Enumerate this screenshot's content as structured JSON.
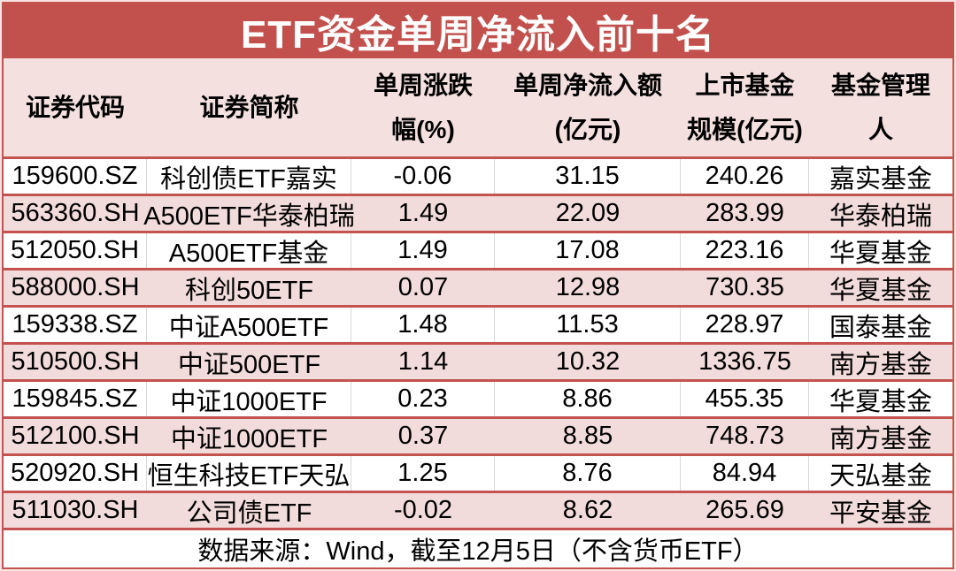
{
  "title": "ETF资金单周净流入前十名",
  "theme": {
    "title_background": "#C2514D",
    "border_red": "#C4524E",
    "row_pink": "#F2DCDB",
    "header_pink": "#F3E0DF",
    "separator_gray": "#D9D9D9",
    "title_text_color": "#FFFFFF",
    "body_text_color": "#000000"
  },
  "table": {
    "headers": [
      {
        "line1": "证券代码",
        "line2": ""
      },
      {
        "line1": "证券简称",
        "line2": ""
      },
      {
        "line1": "单周涨跌",
        "line2": "幅(%)"
      },
      {
        "line1": "单周净流入额",
        "line2": "(亿元)"
      },
      {
        "line1": "上市基金",
        "line2": "规模(亿元)"
      },
      {
        "line1": "基金管理",
        "line2": "人"
      }
    ],
    "rows": [
      {
        "code": "159600.SZ",
        "name": "科创债ETF嘉实",
        "change": "-0.06",
        "inflow": "31.15",
        "size": "240.26",
        "manager": "嘉实基金"
      },
      {
        "code": "563360.SH",
        "name": "A500ETF华泰柏瑞",
        "change": "1.49",
        "inflow": "22.09",
        "size": "283.99",
        "manager": "华泰柏瑞"
      },
      {
        "code": "512050.SH",
        "name": "A500ETF基金",
        "change": "1.49",
        "inflow": "17.08",
        "size": "223.16",
        "manager": "华夏基金"
      },
      {
        "code": "588000.SH",
        "name": "科创50ETF",
        "change": "0.07",
        "inflow": "12.98",
        "size": "730.35",
        "manager": "华夏基金"
      },
      {
        "code": "159338.SZ",
        "name": "中证A500ETF",
        "change": "1.48",
        "inflow": "11.53",
        "size": "228.97",
        "manager": "国泰基金"
      },
      {
        "code": "510500.SH",
        "name": "中证500ETF",
        "change": "1.14",
        "inflow": "10.32",
        "size": "1336.75",
        "manager": "南方基金"
      },
      {
        "code": "159845.SZ",
        "name": "中证1000ETF",
        "change": "0.23",
        "inflow": "8.86",
        "size": "455.35",
        "manager": "华夏基金"
      },
      {
        "code": "512100.SH",
        "name": "中证1000ETF",
        "change": "0.37",
        "inflow": "8.85",
        "size": "748.73",
        "manager": "南方基金"
      },
      {
        "code": "520920.SH",
        "name": "恒生科技ETF天弘",
        "change": "1.25",
        "inflow": "8.76",
        "size": "84.94",
        "manager": "天弘基金"
      },
      {
        "code": "511030.SH",
        "name": "公司债ETF",
        "change": "-0.02",
        "inflow": "8.62",
        "size": "265.69",
        "manager": "平安基金"
      }
    ]
  },
  "footer": {
    "source_note": "数据来源：Wind，截至12月5日（不含货币ETF）"
  },
  "chart_data": {
    "type": "table",
    "title": "ETF资金单周净流入前十名",
    "columns": [
      "证券代码",
      "证券简称",
      "单周涨跌幅(%)",
      "单周净流入额(亿元)",
      "上市基金规模(亿元)",
      "基金管理人"
    ],
    "rows": [
      [
        "159600.SZ",
        "科创债ETF嘉实",
        -0.06,
        31.15,
        240.26,
        "嘉实基金"
      ],
      [
        "563360.SH",
        "A500ETF华泰柏瑞",
        1.49,
        22.09,
        283.99,
        "华泰柏瑞"
      ],
      [
        "512050.SH",
        "A500ETF基金",
        1.49,
        17.08,
        223.16,
        "华夏基金"
      ],
      [
        "588000.SH",
        "科创50ETF",
        0.07,
        12.98,
        730.35,
        "华夏基金"
      ],
      [
        "159338.SZ",
        "中证A500ETF",
        1.48,
        11.53,
        228.97,
        "国泰基金"
      ],
      [
        "510500.SH",
        "中证500ETF",
        1.14,
        10.32,
        1336.75,
        "南方基金"
      ],
      [
        "159845.SZ",
        "中证1000ETF",
        0.23,
        8.86,
        455.35,
        "华夏基金"
      ],
      [
        "512100.SH",
        "中证1000ETF",
        0.37,
        8.85,
        748.73,
        "南方基金"
      ],
      [
        "520920.SH",
        "恒生科技ETF天弘",
        1.25,
        8.76,
        84.94,
        "天弘基金"
      ],
      [
        "511030.SH",
        "公司债ETF",
        -0.02,
        8.62,
        265.69,
        "平安基金"
      ]
    ],
    "source": "数据来源：Wind，截至12月5日（不含货币ETF）"
  }
}
